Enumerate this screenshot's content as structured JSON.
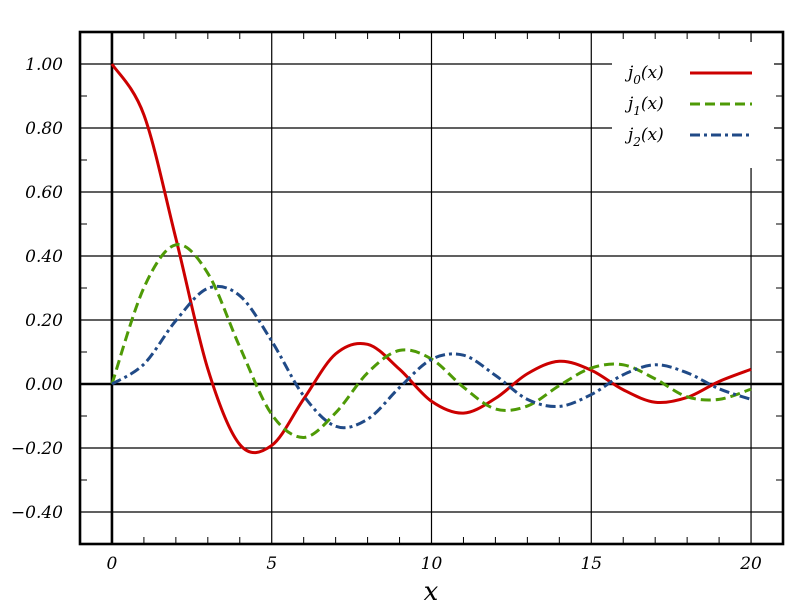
{
  "chart_data": {
    "type": "line",
    "title": "",
    "xlabel": "x",
    "ylabel": "",
    "xlim": [
      -1,
      21
    ],
    "ylim": [
      -0.5,
      1.1
    ],
    "x_ticks": [
      0,
      5,
      10,
      15,
      20
    ],
    "x_tick_labels": [
      "0",
      "5",
      "10",
      "15",
      "20"
    ],
    "y_ticks": [
      -0.4,
      -0.2,
      0,
      0.2,
      0.4,
      0.6,
      0.8,
      1.0
    ],
    "y_tick_labels": [
      "−0.40",
      "−0.20",
      "0.00",
      "0.20",
      "0.40",
      "0.60",
      "0.80",
      "1.00"
    ],
    "grid": true,
    "legend_position": "top-right",
    "x": [
      0,
      1,
      2,
      3,
      4,
      5,
      6,
      7,
      8,
      9,
      10,
      11,
      12,
      13,
      14,
      15,
      16,
      17,
      18,
      19,
      20
    ],
    "series": [
      {
        "name": "j",
        "sub": "0",
        "arg": "(x)",
        "color": "#cc0000",
        "dash": "solid",
        "values": [
          1.0,
          0.841,
          0.455,
          0.047,
          -0.189,
          -0.192,
          -0.047,
          0.094,
          0.124,
          0.046,
          -0.054,
          -0.091,
          -0.045,
          0.032,
          0.071,
          0.043,
          -0.018,
          -0.057,
          -0.042,
          0.008,
          0.046
        ]
      },
      {
        "name": "j",
        "sub": "1",
        "arg": "(x)",
        "color": "#4e9a06",
        "dash": "dashed",
        "values": [
          0.0,
          0.301,
          0.435,
          0.346,
          0.116,
          -0.095,
          -0.167,
          -0.09,
          0.035,
          0.105,
          0.078,
          -0.01,
          -0.078,
          -0.069,
          -0.005,
          0.05,
          0.06,
          0.016,
          -0.04,
          -0.048,
          -0.016
        ]
      },
      {
        "name": "j",
        "sub": "2",
        "arg": "(x)",
        "color": "#204a87",
        "dash": "dashdot",
        "values": [
          0.0,
          0.062,
          0.198,
          0.299,
          0.276,
          0.134,
          -0.037,
          -0.132,
          -0.11,
          -0.011,
          0.077,
          0.09,
          0.027,
          -0.048,
          -0.07,
          -0.033,
          0.029,
          0.06,
          0.035,
          -0.015,
          -0.048
        ]
      }
    ]
  }
}
